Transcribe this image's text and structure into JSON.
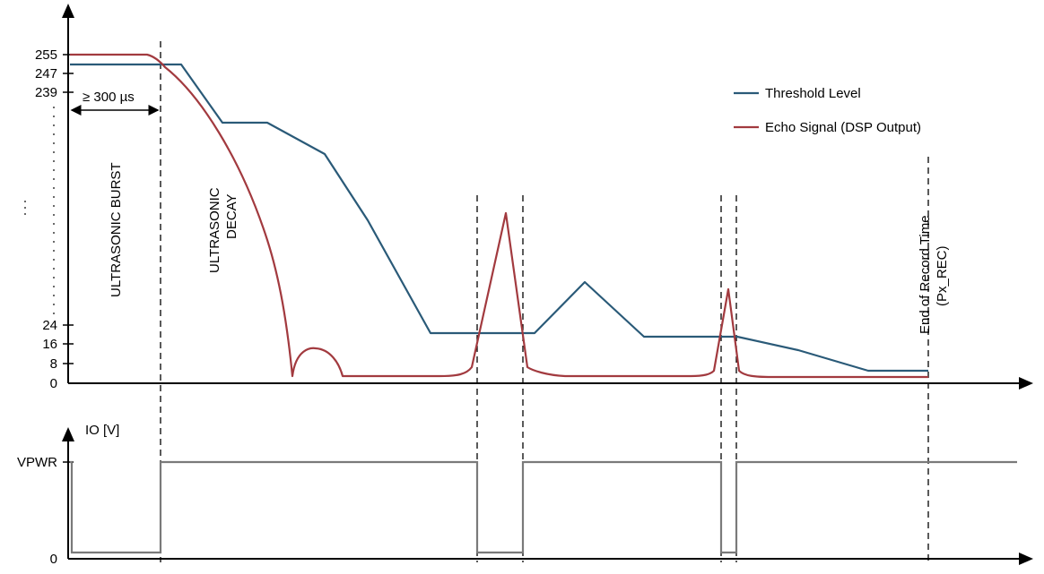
{
  "top_chart": {
    "y_ticks": [
      "255",
      "247",
      "239",
      "24",
      "16",
      "8",
      "0"
    ],
    "burst_label": "ULTRASONIC BURST",
    "decay_label_line1": "ULTRASONIC",
    "decay_label_line2": "DECAY",
    "burst_duration": "≥ 300 µs",
    "record_end_line1": "End of Record Time",
    "record_end_line2": "(Px_REC)"
  },
  "legend": {
    "items": [
      {
        "label": "Threshold Level",
        "color": "#2a5a78"
      },
      {
        "label": "Echo Signal (DSP Output)",
        "color": "#a23a3f"
      }
    ]
  },
  "bottom_chart": {
    "y_axis_label": "IO [V]",
    "y_ticks": [
      "VPWR",
      "0"
    ]
  },
  "colors": {
    "threshold": "#2a5a78",
    "echo": "#a23a3f",
    "io": "#7a7a7a"
  }
}
